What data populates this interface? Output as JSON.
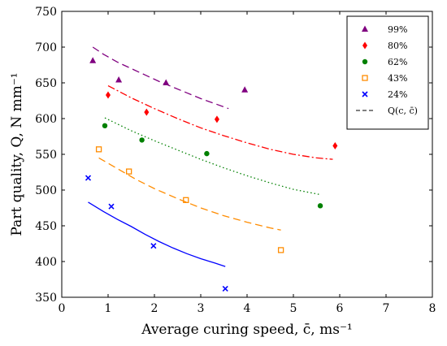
{
  "chart_data": {
    "type": "scatter",
    "xlabel": "Average curing speed, c̄, ms⁻¹",
    "ylabel": "Part quality, Q, N mm⁻¹",
    "xlim": [
      0,
      8
    ],
    "ylim": [
      350,
      750
    ],
    "x_ticks": [
      "0",
      "1",
      "2",
      "3",
      "4",
      "5",
      "6",
      "7",
      "8"
    ],
    "y_ticks": [
      "350",
      "400",
      "450",
      "500",
      "550",
      "600",
      "650",
      "700",
      "750"
    ],
    "legend_position": "top-right",
    "series": [
      {
        "name": "99%",
        "marker": "triangle",
        "color": "#800080",
        "points": [
          [
            0.67,
            681
          ],
          [
            1.23,
            654
          ],
          [
            2.25,
            650
          ],
          [
            3.95,
            640
          ]
        ],
        "fit": {
          "style": "dashed",
          "x": [
            0.67,
            0.9,
            1.2,
            1.5,
            1.8,
            2.1,
            2.4,
            2.7,
            3.0,
            3.3,
            3.6
          ],
          "y": [
            700,
            690,
            679,
            670,
            661,
            652,
            644,
            636,
            628,
            621,
            614
          ]
        }
      },
      {
        "name": "80%",
        "marker": "diamond",
        "color": "#ff0000",
        "points": [
          [
            1.0,
            633
          ],
          [
            1.83,
            609
          ],
          [
            3.35,
            599
          ],
          [
            5.9,
            562
          ]
        ],
        "fit": {
          "style": "dashdot",
          "x": [
            1.0,
            1.5,
            2.0,
            2.5,
            3.0,
            3.5,
            4.0,
            4.5,
            5.0,
            5.5,
            5.85
          ],
          "y": [
            646,
            629,
            614,
            600,
            587,
            576,
            566,
            557,
            550,
            545,
            543
          ]
        }
      },
      {
        "name": "62%",
        "marker": "circle",
        "color": "#008000",
        "points": [
          [
            0.93,
            590
          ],
          [
            1.73,
            570
          ],
          [
            3.13,
            551
          ],
          [
            5.58,
            478
          ]
        ],
        "fit": {
          "style": "dotted",
          "x": [
            0.93,
            1.5,
            2.0,
            2.5,
            3.0,
            3.5,
            4.0,
            4.5,
            5.0,
            5.55
          ],
          "y": [
            601,
            583,
            569,
            556,
            543,
            531,
            520,
            510,
            501,
            494
          ]
        }
      },
      {
        "name": "43%",
        "marker": "square",
        "color": "#ff8c00",
        "points": [
          [
            0.8,
            557
          ],
          [
            1.45,
            526
          ],
          [
            2.68,
            486
          ],
          [
            4.73,
            416
          ]
        ],
        "fit": {
          "style": "dashed",
          "x": [
            0.8,
            1.2,
            1.6,
            2.0,
            2.5,
            3.0,
            3.5,
            4.0,
            4.5,
            4.73
          ],
          "y": [
            545,
            530,
            515,
            502,
            488,
            475,
            464,
            455,
            447,
            444
          ]
        }
      },
      {
        "name": "24%",
        "marker": "cross",
        "color": "#0000ff",
        "points": [
          [
            0.57,
            517
          ],
          [
            1.07,
            477
          ],
          [
            1.98,
            422
          ],
          [
            3.53,
            362
          ]
        ],
        "fit": {
          "style": "solid",
          "x": [
            0.57,
            0.9,
            1.2,
            1.5,
            1.8,
            2.1,
            2.4,
            2.7,
            3.0,
            3.3,
            3.53
          ],
          "y": [
            483,
            470,
            459,
            449,
            438,
            428,
            419,
            411,
            404,
            398,
            393
          ]
        }
      }
    ],
    "legend": [
      {
        "label": "99%",
        "marker": "triangle",
        "color": "#800080"
      },
      {
        "label": "80%",
        "marker": "diamond",
        "color": "#ff0000"
      },
      {
        "label": "62%",
        "marker": "circle",
        "color": "#008000"
      },
      {
        "label": "43%",
        "marker": "square",
        "color": "#ff8c00"
      },
      {
        "label": "24%",
        "marker": "cross",
        "color": "#0000ff"
      },
      {
        "label": "Q(c, c̄)",
        "marker": "dashed-line",
        "color": "#000000"
      }
    ]
  }
}
